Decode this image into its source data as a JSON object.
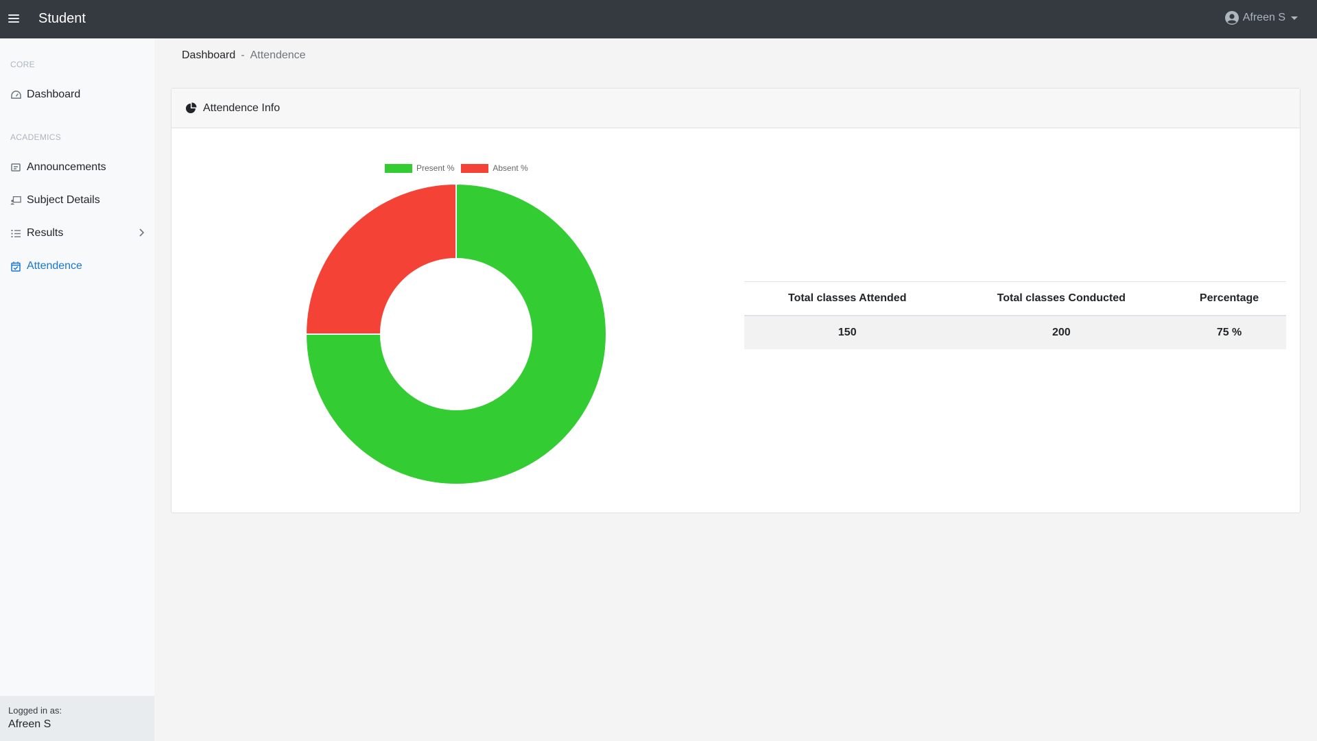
{
  "app": {
    "title": "Student"
  },
  "user": {
    "name": "Afreen S"
  },
  "sidebar": {
    "sections": [
      {
        "heading": "CORE"
      },
      {
        "heading": "ACADEMICS"
      }
    ],
    "items": [
      {
        "label": "Dashboard",
        "icon": "dashboard-gauge-icon"
      },
      {
        "label": "Announcements",
        "icon": "announcement-icon"
      },
      {
        "label": "Subject Details",
        "icon": "teacher-board-icon"
      },
      {
        "label": "Results",
        "icon": "list-check-icon"
      },
      {
        "label": "Attendence",
        "icon": "calendar-check-icon",
        "active": true
      }
    ],
    "footer": {
      "logged_in_label": "Logged in as:",
      "user": "Afreen S"
    }
  },
  "breadcrumb": {
    "root": "Dashboard",
    "separator": "-",
    "current": "Attendence"
  },
  "card": {
    "title": "Attendence Info",
    "icon": "chart-pie-icon"
  },
  "colors": {
    "present": "#33cc33",
    "absent": "#f44336",
    "accent": "#1976d2",
    "nav": "#343a40"
  },
  "chart_data": {
    "type": "pie",
    "variant": "doughnut",
    "categories": [
      "Present %",
      "Absent %"
    ],
    "values": [
      75,
      25
    ],
    "colors": [
      "#33cc33",
      "#f44336"
    ],
    "legend": "top"
  },
  "table": {
    "headers": [
      "Total classes Attended",
      "Total classes Conducted",
      "Percentage"
    ],
    "rows": [
      [
        "150",
        "200",
        "75 %"
      ]
    ]
  }
}
